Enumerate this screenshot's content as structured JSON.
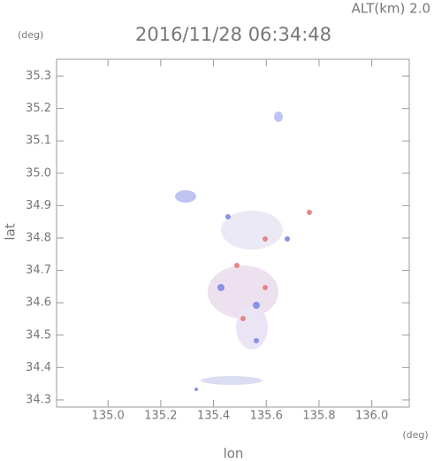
{
  "chart_data": {
    "type": "map",
    "title": "2016/11/28 06:34:48",
    "altitude_label": "ALT(km) 2.0",
    "y_unit": "(deg)",
    "x_unit": "(deg)",
    "xlabel": "lon",
    "ylabel": "lat",
    "xlim": [
      134.805,
      136.142
    ],
    "ylim": [
      34.278,
      35.352
    ],
    "xticks": [
      {
        "value": 135,
        "label": "135.0"
      },
      135.2,
      135.4,
      135.6,
      135.8,
      {
        "value": 136,
        "label": "136.0"
      }
    ],
    "yticks": [
      34.3,
      34.4,
      34.5,
      34.6,
      34.7,
      34.8,
      34.9,
      {
        "value": 35,
        "label": "35.0"
      },
      35.1,
      35.2,
      35.3
    ]
  }
}
